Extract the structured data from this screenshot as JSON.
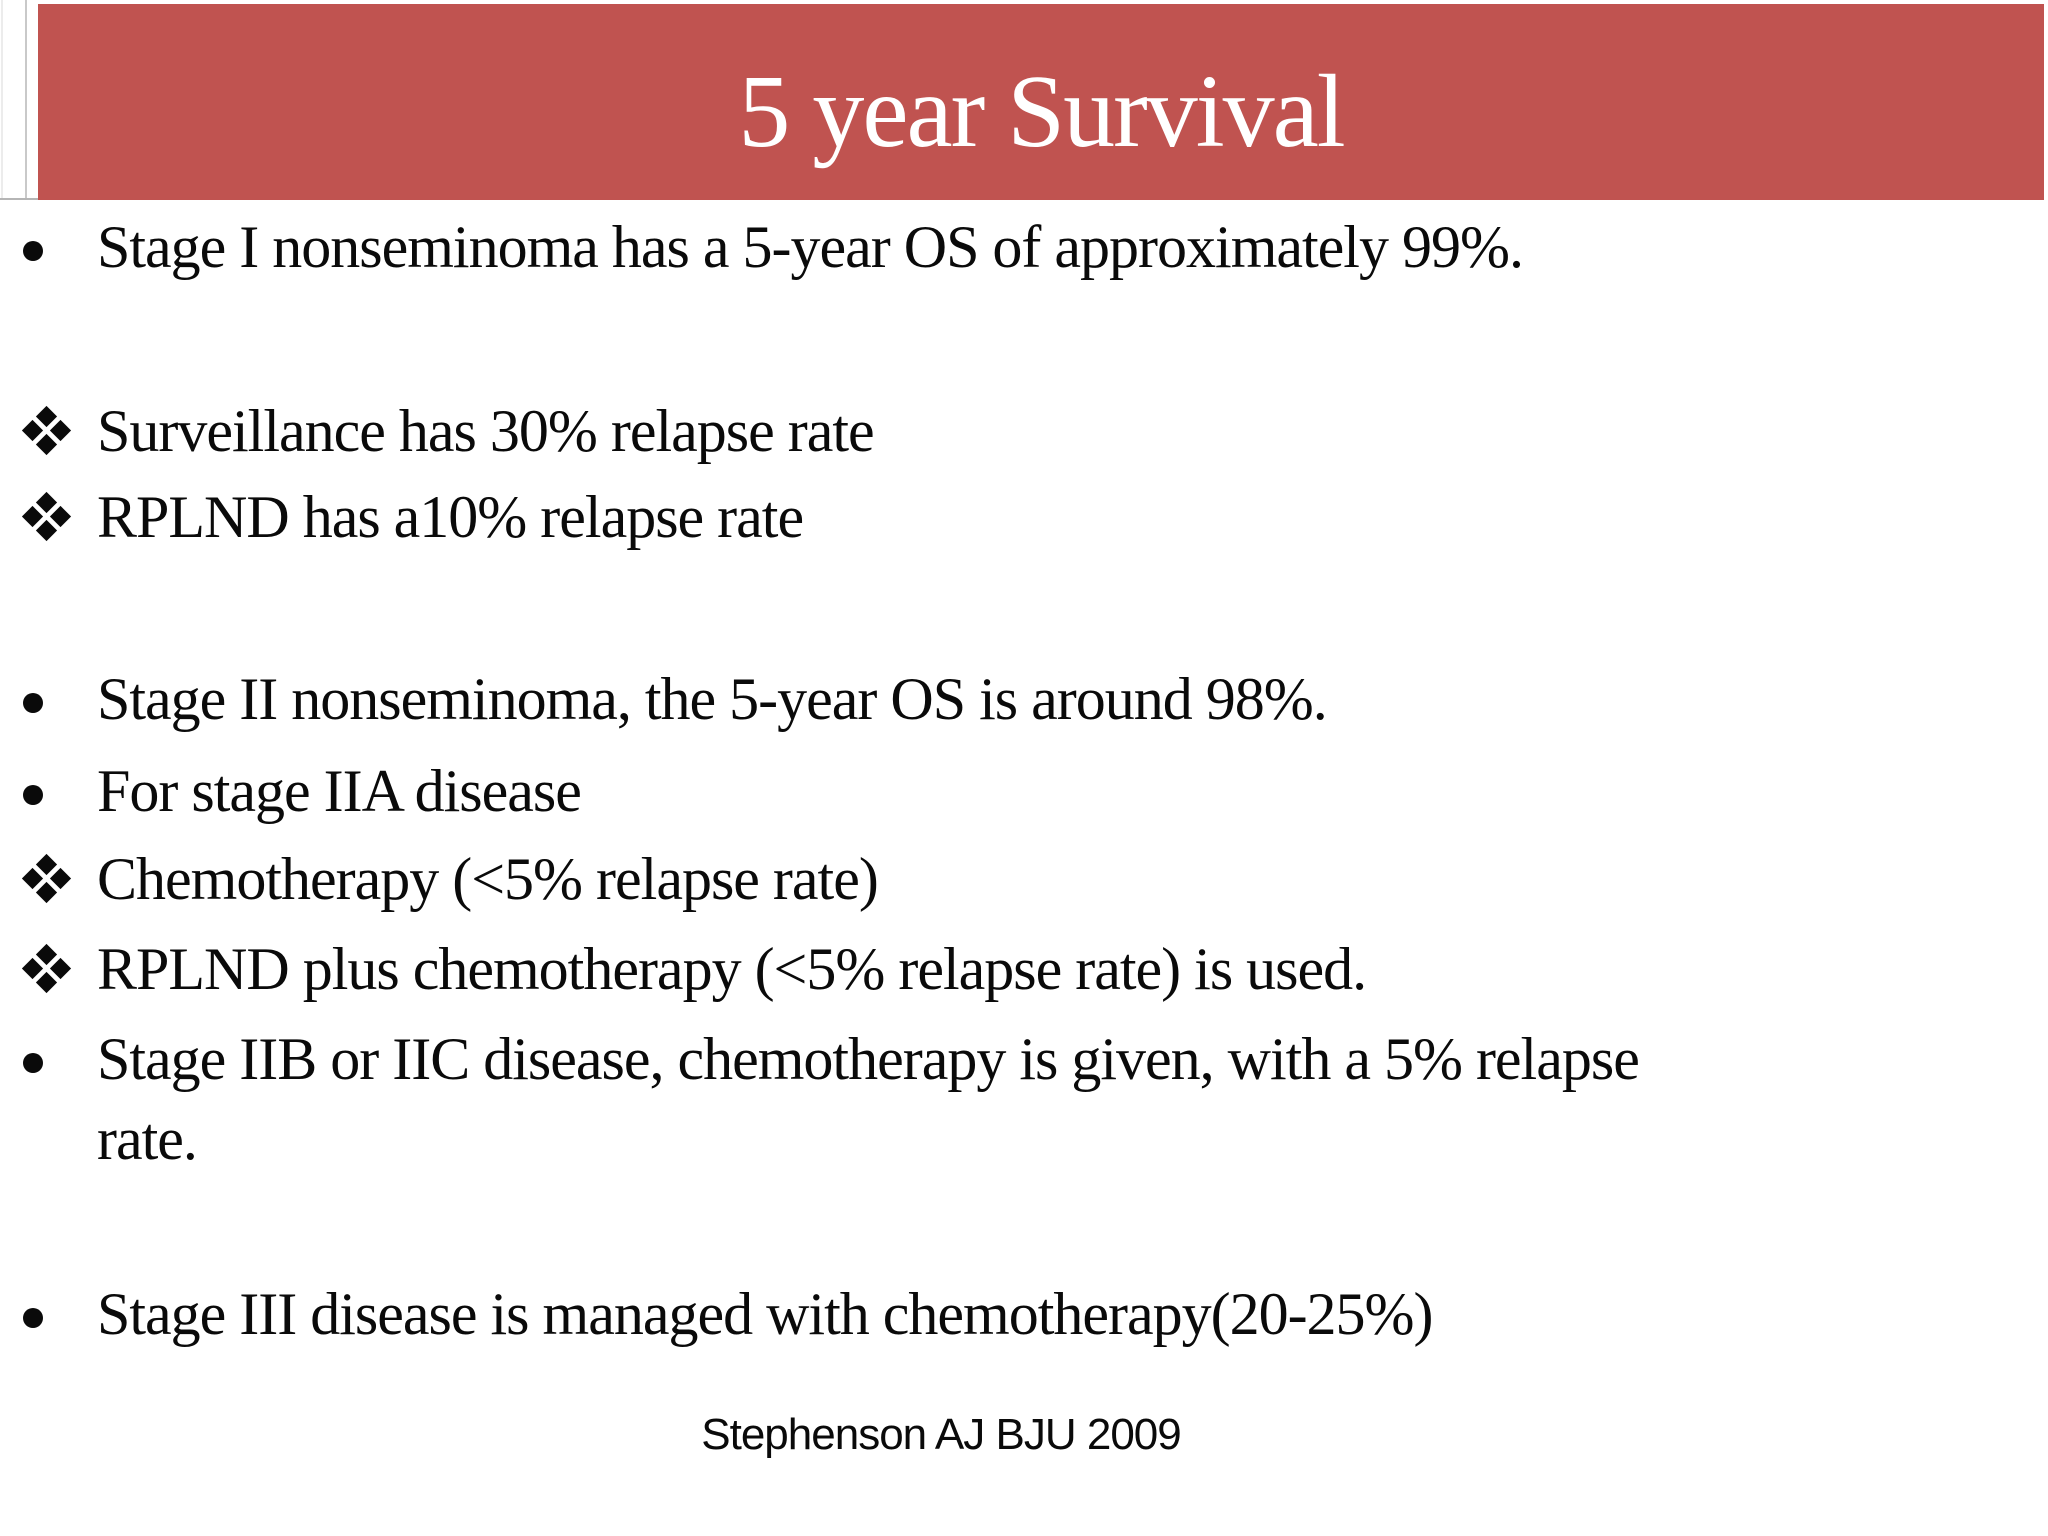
{
  "slide": {
    "title": "5 year Survival",
    "colors": {
      "banner": "#C05350",
      "title_text": "#FFFFFF",
      "body_text": "#0A0A0A"
    },
    "bullets": [
      {
        "type": "dot",
        "lines": [
          "Stage I nonseminoma has a 5-year OS of approximately 99%."
        ]
      },
      {
        "type": "diamond",
        "lines": [
          "Surveillance has 30% relapse rate"
        ]
      },
      {
        "type": "diamond",
        "lines": [
          "RPLND has a10% relapse rate"
        ]
      },
      {
        "type": "dot",
        "lines": [
          "Stage II nonseminoma, the 5-year OS is around 98%."
        ]
      },
      {
        "type": "dot",
        "lines": [
          "For stage IIA disease"
        ]
      },
      {
        "type": "diamond",
        "lines": [
          "Chemotherapy (<5% relapse rate)"
        ]
      },
      {
        "type": "diamond",
        "lines": [
          "RPLND plus chemotherapy (<5% relapse rate) is used."
        ]
      },
      {
        "type": "dot",
        "lines": [
          "Stage IIB or IIC disease, chemotherapy is given, with a 5% relapse",
          "rate."
        ]
      },
      {
        "type": "dot",
        "lines": [
          "Stage III disease is managed with chemotherapy(20-25%)"
        ]
      }
    ],
    "citation": "Stephenson AJ BJU 2009"
  }
}
